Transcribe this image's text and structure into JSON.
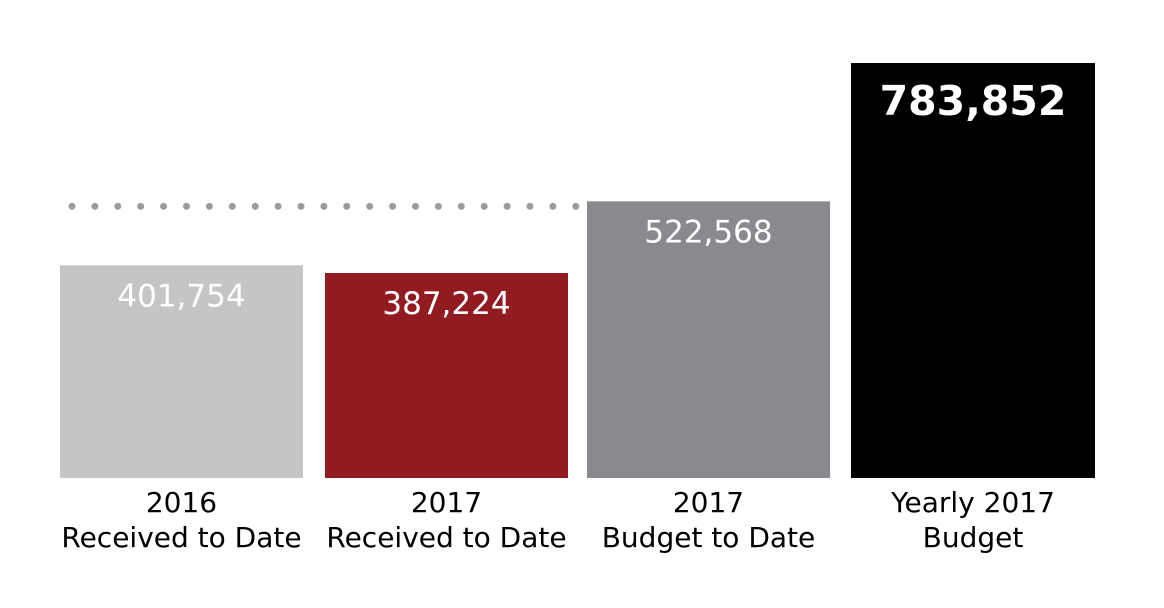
{
  "chart_data": {
    "type": "bar",
    "title": "",
    "xlabel": "",
    "ylabel": "",
    "ylim": [
      0,
      783852
    ],
    "categories": [
      {
        "line1": "2016",
        "line2": "Received to Date"
      },
      {
        "line1": "2017",
        "line2": "Received to Date"
      },
      {
        "line1": "2017",
        "line2": "Budget to Date"
      },
      {
        "line1": "Yearly 2017",
        "line2": "Budget"
      }
    ],
    "values": [
      401754,
      387224,
      522568,
      783852
    ],
    "value_labels": [
      "401,754",
      "387,224",
      "522,568",
      "783,852"
    ],
    "colors": [
      "#c4c5c7",
      "#911b20",
      "#898a8d",
      "#000000"
    ],
    "reference_line": {
      "value": 522568,
      "style": "dotted",
      "color": "#9a9b9d"
    },
    "grid": false,
    "legend": "none"
  }
}
